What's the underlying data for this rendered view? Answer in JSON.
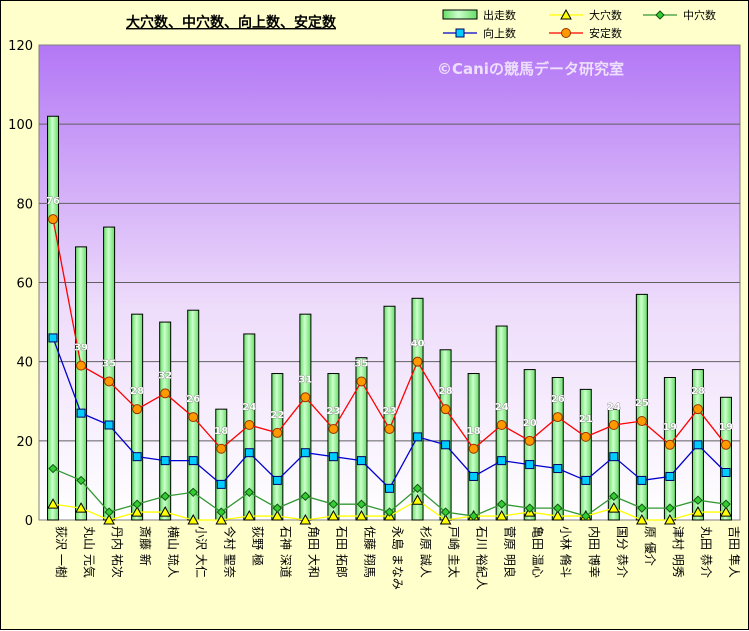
{
  "chart_data": {
    "type": "bar",
    "title": "大穴数、中穴数、向上数、安定数",
    "watermark": "©Caniの競馬データ研究室",
    "ylim": [
      0,
      120
    ],
    "yticks": [
      0,
      20,
      40,
      60,
      80,
      100,
      120
    ],
    "grid": true,
    "legend_position": "top-right",
    "categories": [
      "荻沢 一樹",
      "丸山 元気",
      "丹内 祐次",
      "斎藤 新",
      "横山 琉人",
      "小沢 大仁",
      "今村 聖奈",
      "荻野 極",
      "石神 深道",
      "角田 大和",
      "石田 拓郎",
      "佐藤 翔馬",
      "永島 まなみ",
      "杉原 誠人",
      "戸崎 圭太",
      "石川 裕紀人",
      "菅原 明良",
      "亀田 温心",
      "小林 脩斗",
      "内田 博幸",
      "国分 恭介",
      "原 優介",
      "津村 明秀",
      "丸田 恭介",
      "吉田 隼人"
    ],
    "series": [
      {
        "name": "出走数",
        "kind": "bar",
        "color": "#99ff99",
        "values": [
          102,
          69,
          74,
          52,
          50,
          53,
          28,
          47,
          37,
          52,
          37,
          41,
          54,
          56,
          43,
          37,
          49,
          38,
          36,
          33,
          28,
          57,
          36,
          38,
          31
        ]
      },
      {
        "name": "大穴数",
        "kind": "line",
        "color": "#ffff00",
        "values": [
          4,
          3,
          0,
          2,
          2,
          0,
          0,
          1,
          1,
          0,
          1,
          1,
          1,
          5,
          0,
          1,
          1,
          2,
          1,
          1,
          3,
          0,
          0,
          2,
          2
        ]
      },
      {
        "name": "中穴数",
        "kind": "line",
        "color": "#339933",
        "values": [
          13,
          10,
          2,
          4,
          6,
          7,
          2,
          7,
          3,
          6,
          4,
          4,
          2,
          8,
          2,
          1,
          4,
          3,
          3,
          1,
          6,
          3,
          3,
          5,
          4
        ]
      },
      {
        "name": "向上数",
        "kind": "line",
        "color": "#0000cc",
        "values": [
          46,
          27,
          24,
          16,
          15,
          15,
          9,
          17,
          10,
          17,
          16,
          15,
          8,
          21,
          19,
          11,
          15,
          14,
          13,
          10,
          16,
          10,
          11,
          19,
          12
        ]
      },
      {
        "name": "安定数",
        "kind": "line",
        "color": "#ff0000",
        "values": [
          76,
          39,
          35,
          28,
          32,
          26,
          18,
          24,
          22,
          31,
          23,
          35,
          23,
          40,
          28,
          18,
          24,
          20,
          26,
          21,
          24,
          25,
          19,
          28,
          19
        ]
      }
    ],
    "data_labels_series": "安定数"
  }
}
